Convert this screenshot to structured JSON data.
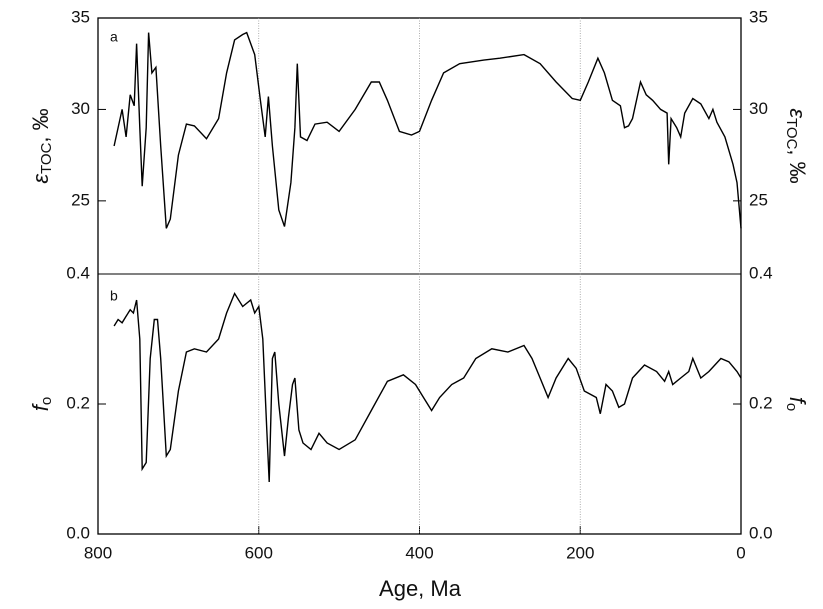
{
  "chart_data": [
    {
      "type": "line",
      "panel_label": "a",
      "ylabel_symbol": "ε",
      "ylabel_subscript": "TOC",
      "ylabel_unit": ", ‰",
      "xlim": [
        800,
        0
      ],
      "ylim": [
        21,
        35
      ],
      "yticks": [
        25,
        30,
        35
      ],
      "color": "#000000",
      "x": [
        780,
        770,
        765,
        760,
        755,
        752,
        748,
        745,
        740,
        737,
        733,
        728,
        722,
        715,
        710,
        700,
        690,
        680,
        665,
        650,
        640,
        630,
        620,
        615,
        605,
        598,
        592,
        588,
        583,
        575,
        568,
        560,
        555,
        552,
        548,
        540,
        530,
        515,
        500,
        480,
        460,
        450,
        440,
        425,
        410,
        400,
        385,
        370,
        350,
        320,
        300,
        270,
        250,
        230,
        210,
        200,
        190,
        178,
        170,
        160,
        150,
        145,
        140,
        135,
        125,
        118,
        110,
        100,
        92,
        90,
        87,
        80,
        75,
        70,
        60,
        50,
        40,
        35,
        30,
        20,
        10,
        5,
        2,
        0
      ],
      "values": [
        28.0,
        30.0,
        28.5,
        30.8,
        30.2,
        33.6,
        29,
        25.8,
        29,
        34.2,
        32,
        32.3,
        28,
        23.5,
        24,
        27.5,
        29.2,
        29.1,
        28.4,
        29.5,
        32,
        33.8,
        34.1,
        34.2,
        33,
        30.5,
        28.5,
        30.7,
        28,
        24.5,
        23.6,
        26,
        29,
        32.5,
        28.5,
        28.3,
        29.2,
        29.3,
        28.8,
        30,
        31.5,
        31.5,
        30.5,
        28.8,
        28.6,
        28.8,
        30.5,
        32,
        32.5,
        32.7,
        32.8,
        33,
        32.5,
        31.5,
        30.6,
        30.5,
        31.5,
        32.8,
        32,
        30.5,
        30.2,
        29,
        29.1,
        29.5,
        31.5,
        30.8,
        30.5,
        30,
        29.8,
        27,
        29.5,
        29,
        28.5,
        29.8,
        30.6,
        30.3,
        29.5,
        30,
        29.3,
        28.5,
        27,
        26,
        24.5,
        23.5
      ]
    },
    {
      "type": "line",
      "panel_label": "b",
      "ylabel_symbol": "f",
      "ylabel_subscript": "o",
      "xlabel": "Age, Ma",
      "xlim": [
        800,
        0
      ],
      "xticks": [
        800,
        600,
        400,
        200,
        0
      ],
      "ylim": [
        0,
        0.4
      ],
      "yticks": [
        {
          "value": 0,
          "label": "0.0"
        },
        0.2,
        0.4
      ],
      "grid": true,
      "color": "#000000",
      "x": [
        780,
        775,
        770,
        765,
        760,
        756,
        752,
        748,
        745,
        740,
        735,
        730,
        726,
        722,
        715,
        710,
        700,
        690,
        680,
        665,
        650,
        640,
        630,
        620,
        610,
        605,
        600,
        595,
        590,
        587,
        583,
        580,
        575,
        568,
        563,
        558,
        555,
        550,
        545,
        535,
        525,
        515,
        500,
        480,
        460,
        440,
        420,
        405,
        395,
        385,
        375,
        360,
        345,
        330,
        310,
        290,
        270,
        260,
        250,
        240,
        230,
        215,
        205,
        195,
        180,
        175,
        168,
        160,
        152,
        145,
        135,
        120,
        105,
        95,
        90,
        85,
        75,
        65,
        60,
        50,
        40,
        25,
        15,
        5,
        0
      ],
      "values": [
        0.32,
        0.33,
        0.325,
        0.335,
        0.345,
        0.34,
        0.36,
        0.3,
        0.1,
        0.11,
        0.27,
        0.33,
        0.33,
        0.27,
        0.12,
        0.13,
        0.22,
        0.28,
        0.285,
        0.28,
        0.3,
        0.34,
        0.37,
        0.35,
        0.36,
        0.34,
        0.35,
        0.3,
        0.16,
        0.08,
        0.27,
        0.28,
        0.2,
        0.12,
        0.18,
        0.23,
        0.24,
        0.16,
        0.14,
        0.13,
        0.155,
        0.14,
        0.13,
        0.145,
        0.19,
        0.235,
        0.245,
        0.23,
        0.21,
        0.19,
        0.21,
        0.23,
        0.24,
        0.27,
        0.285,
        0.28,
        0.29,
        0.27,
        0.24,
        0.21,
        0.24,
        0.27,
        0.255,
        0.22,
        0.21,
        0.185,
        0.23,
        0.22,
        0.195,
        0.2,
        0.24,
        0.26,
        0.25,
        0.235,
        0.25,
        0.23,
        0.24,
        0.25,
        0.27,
        0.24,
        0.25,
        0.27,
        0.265,
        0.25,
        0.24
      ]
    }
  ]
}
